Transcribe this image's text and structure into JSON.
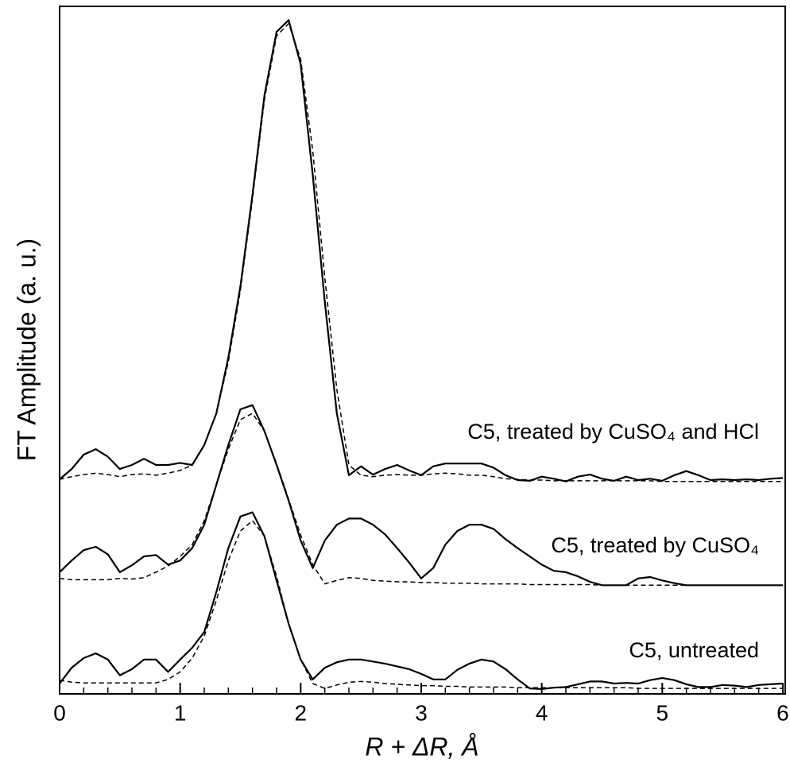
{
  "chart_data": {
    "type": "line",
    "xlabel": "R + ΔR, Å",
    "ylabel": "FT Amplitude (a. u.)",
    "annotations": [
      "C5, treated by CuSO₄ and HCl",
      "C5, treated by CuSO₄",
      "C5, untreated"
    ],
    "x": [
      0,
      0.1,
      0.2,
      0.3,
      0.4,
      0.5,
      0.6,
      0.7,
      0.8,
      0.9,
      1.0,
      1.1,
      1.2,
      1.3,
      1.4,
      1.5,
      1.6,
      1.7,
      1.8,
      1.9,
      2.0,
      2.1,
      2.2,
      2.3,
      2.4,
      2.5,
      2.6,
      2.7,
      2.8,
      2.9,
      3.0,
      3.1,
      3.2,
      3.3,
      3.4,
      3.5,
      3.6,
      3.7,
      3.8,
      3.9,
      4.0,
      4.1,
      4.2,
      4.3,
      4.4,
      4.5,
      4.6,
      4.7,
      4.8,
      4.9,
      5.0,
      5.1,
      5.2,
      5.3,
      5.4,
      5.5,
      5.6,
      5.7,
      5.8,
      5.9,
      6.0
    ],
    "series": [
      {
        "color": "#000000",
        "dashed": false,
        "values": [
          31.2,
          32.7,
          34.8,
          35.6,
          34.5,
          32.7,
          33.3,
          34.2,
          33.3,
          33.3,
          33.6,
          33.3,
          36.2,
          40.8,
          48.9,
          59.3,
          72.6,
          87.1,
          96.3,
          98.0,
          91.6,
          75.5,
          57.0,
          40.8,
          31.8,
          33.1,
          31.9,
          32.7,
          33.3,
          32.5,
          31.8,
          33.1,
          33.5,
          33.5,
          33.5,
          33.5,
          32.9,
          31.8,
          31.1,
          31.0,
          31.6,
          31.3,
          30.9,
          31.6,
          31.9,
          31.3,
          31.0,
          31.6,
          31.1,
          31.3,
          31.0,
          31.8,
          32.4,
          31.8,
          31.1,
          31.2,
          31.1,
          31.2,
          31.1,
          31.3,
          31.4
        ]
      },
      {
        "color": "#000000",
        "dashed": true,
        "values": [
          31.2,
          31.6,
          31.9,
          32.1,
          31.9,
          31.6,
          31.9,
          32.0,
          31.8,
          32.1,
          32.5,
          33.3,
          36.2,
          40.8,
          48.3,
          58.7,
          72.0,
          86.5,
          95.7,
          97.5,
          92.3,
          79.0,
          60.5,
          44.3,
          33.3,
          31.8,
          31.6,
          31.8,
          31.9,
          31.8,
          31.8,
          32.0,
          32.1,
          32.0,
          31.8,
          31.8,
          31.6,
          31.3,
          31.2,
          31.1,
          31.1,
          31.0,
          31.0,
          31.0,
          31.0,
          31.0,
          31.0,
          31.0,
          31.0,
          31.0,
          30.9,
          30.9,
          30.9,
          30.9,
          30.9,
          30.9,
          30.9,
          30.9,
          30.9,
          30.9,
          30.9
        ]
      },
      {
        "color": "#000000",
        "dashed": false,
        "values": [
          17.7,
          19.4,
          20.9,
          21.4,
          20.3,
          17.7,
          18.7,
          20.0,
          20.2,
          18.8,
          19.4,
          21.2,
          24.6,
          30.4,
          36.2,
          41.4,
          42.0,
          38.2,
          33.3,
          28.1,
          22.3,
          18.3,
          22.3,
          24.6,
          25.5,
          25.5,
          24.6,
          23.2,
          21.2,
          19.1,
          16.8,
          18.3,
          21.7,
          23.7,
          24.6,
          24.6,
          24.0,
          22.5,
          21.2,
          20.0,
          18.8,
          17.9,
          17.7,
          17.1,
          16.3,
          15.8,
          15.8,
          15.8,
          16.8,
          17.0,
          16.5,
          16.1,
          15.8,
          15.8,
          15.8,
          15.8,
          15.8,
          15.8,
          15.8,
          15.8,
          15.8
        ]
      },
      {
        "color": "#000000",
        "dashed": true,
        "values": [
          16.8,
          16.6,
          16.6,
          16.6,
          16.6,
          16.8,
          16.7,
          16.9,
          17.7,
          18.6,
          20.0,
          21.7,
          25.2,
          30.4,
          35.6,
          39.9,
          40.8,
          38.2,
          33.5,
          28.3,
          23.1,
          18.8,
          16.0,
          16.5,
          16.9,
          16.8,
          16.5,
          16.4,
          16.3,
          16.3,
          16.2,
          16.2,
          16.1,
          16.1,
          16.1,
          16.0,
          16.0,
          16.0,
          16.0,
          15.9,
          15.9,
          15.9,
          15.9,
          15.9,
          15.9,
          15.8,
          15.8,
          15.8,
          15.8,
          15.8,
          15.8,
          15.8,
          15.8,
          15.8,
          15.8,
          15.8,
          15.8,
          15.8,
          15.8,
          15.8,
          15.8
        ]
      },
      {
        "color": "#000000",
        "dashed": false,
        "values": [
          1.5,
          3.8,
          5.2,
          5.9,
          5.0,
          2.7,
          3.6,
          5.0,
          5.0,
          3.2,
          5.0,
          6.7,
          9.0,
          14.8,
          21.2,
          25.8,
          26.4,
          22.9,
          16.5,
          10.2,
          5.0,
          2.1,
          3.8,
          4.6,
          5.0,
          5.0,
          4.7,
          4.4,
          4.0,
          3.6,
          2.9,
          2.1,
          2.1,
          3.5,
          4.4,
          5.0,
          4.7,
          3.6,
          2.1,
          0.8,
          0.7,
          0.9,
          1.0,
          1.4,
          1.8,
          1.8,
          1.5,
          1.6,
          1.5,
          2.0,
          2.3,
          2.0,
          1.4,
          1.0,
          1.0,
          1.3,
          1.2,
          1.0,
          1.3,
          1.4,
          1.5
        ]
      },
      {
        "color": "#000000",
        "dashed": true,
        "values": [
          2.0,
          1.7,
          1.6,
          1.6,
          1.6,
          1.6,
          1.6,
          1.6,
          1.6,
          2.1,
          3.2,
          5.2,
          8.4,
          13.6,
          19.4,
          23.7,
          25.2,
          22.9,
          17.1,
          10.2,
          5.0,
          1.5,
          0.8,
          1.3,
          1.7,
          1.8,
          1.7,
          1.5,
          1.4,
          1.3,
          1.2,
          1.2,
          1.1,
          1.1,
          1.0,
          1.0,
          1.0,
          1.0,
          0.9,
          0.9,
          0.9,
          0.9,
          0.9,
          0.9,
          0.9,
          0.9,
          0.9,
          0.9,
          0.8,
          0.8,
          0.8,
          0.8,
          0.8,
          0.8,
          0.8,
          0.8,
          0.8,
          0.8,
          0.8,
          0.8,
          0.8
        ]
      }
    ],
    "xlim": [
      0,
      6.02
    ],
    "ylim": [
      0,
      100
    ],
    "xticks": [
      0,
      1,
      2,
      3,
      4,
      5,
      6
    ],
    "xminorticks": [
      0.2,
      0.4,
      0.6,
      0.8,
      1.2,
      1.4,
      1.6,
      1.8,
      2.2,
      2.4,
      2.6,
      2.8,
      3.2,
      3.4,
      3.6,
      3.8,
      4.2,
      4.4,
      4.6,
      4.8,
      5.2,
      5.4,
      5.6,
      5.8
    ],
    "grid": false
  }
}
